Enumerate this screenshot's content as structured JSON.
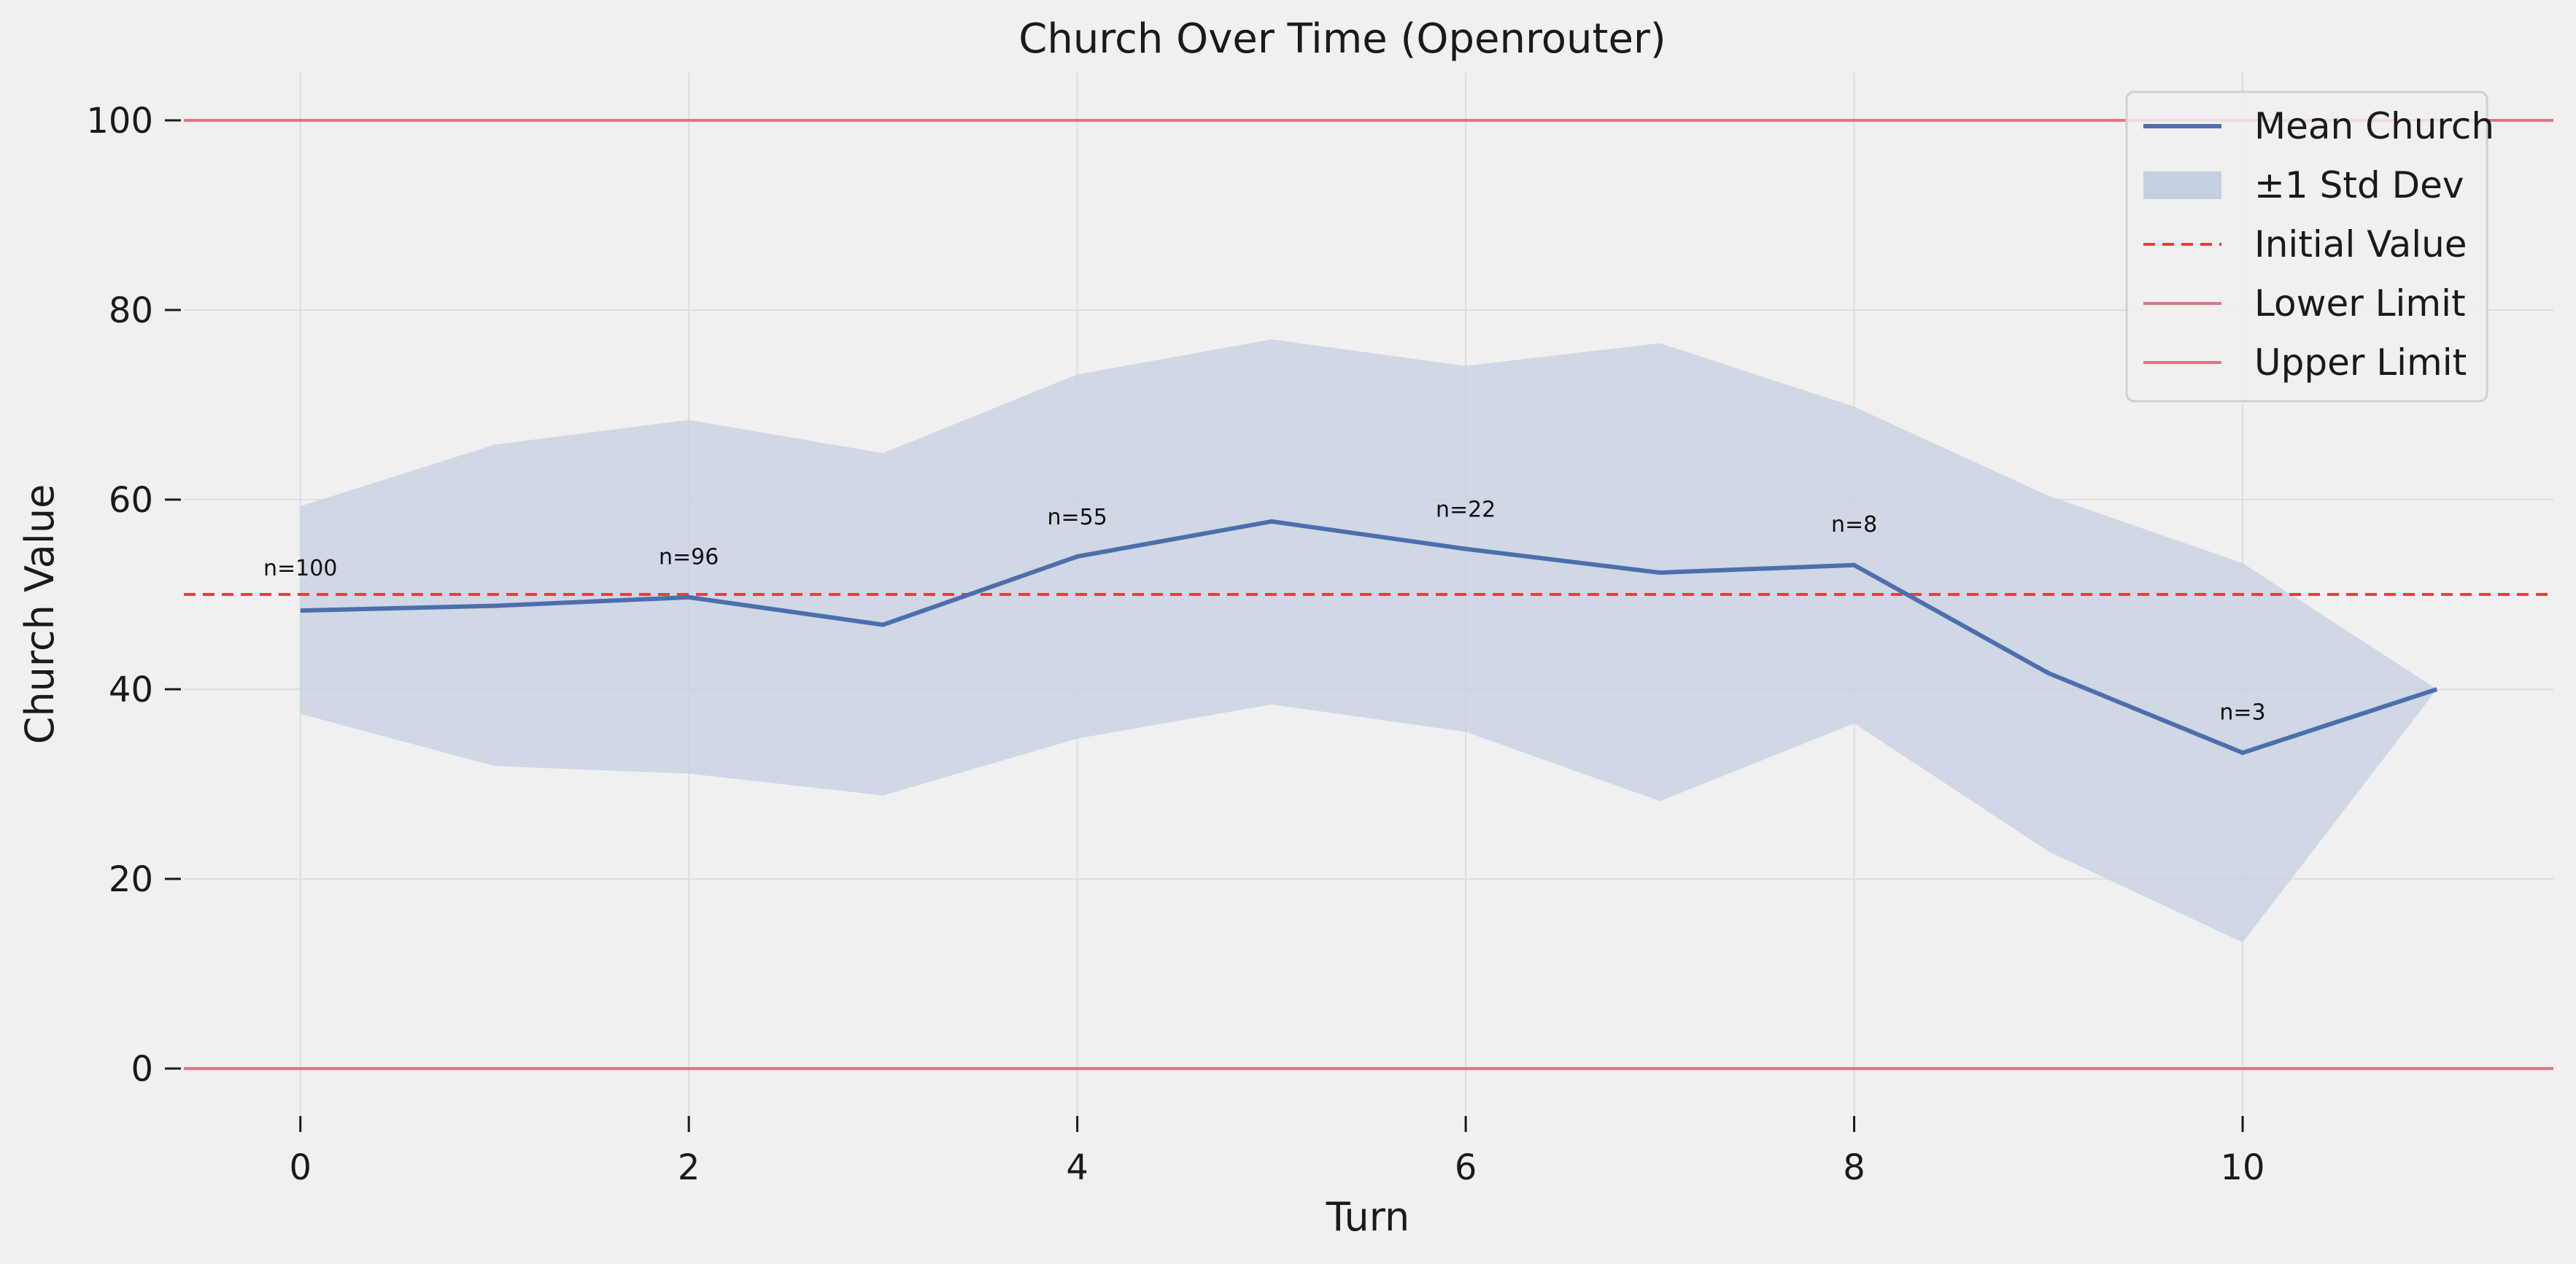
{
  "chart_data": {
    "type": "line",
    "title": "Church Over Time (Openrouter)",
    "xlabel": "Turn",
    "ylabel": "Church Value",
    "xlim": [
      -0.6,
      11.6
    ],
    "ylim": [
      -5,
      105
    ],
    "xticks": [
      0,
      2,
      4,
      6,
      8,
      10
    ],
    "yticks": [
      0,
      20,
      40,
      60,
      80,
      100
    ],
    "grid": true,
    "legend_position": "top-right",
    "x": [
      0,
      1,
      2,
      3,
      4,
      5,
      6,
      7,
      8,
      9,
      10,
      11
    ],
    "series": [
      {
        "name": "Mean Church",
        "color": "#4c6fac",
        "values": [
          48.3,
          48.8,
          49.7,
          46.8,
          54.0,
          57.7,
          54.8,
          52.3,
          53.1,
          41.7,
          33.3,
          40.0
        ]
      }
    ],
    "band": {
      "name": "±1 Std Dev",
      "color": "#c5cfe2",
      "upper": [
        59.3,
        65.8,
        68.4,
        64.9,
        73.2,
        76.9,
        74.1,
        76.5,
        69.8,
        60.4,
        53.3,
        40.0
      ],
      "lower": [
        37.4,
        31.9,
        31.1,
        28.8,
        34.8,
        38.4,
        35.5,
        28.2,
        36.4,
        22.9,
        13.3,
        40.0
      ]
    },
    "reference_lines": [
      {
        "name": "Initial Value",
        "y": 50,
        "color": "#e0413f",
        "style": "dashed"
      },
      {
        "name": "Lower Limit",
        "y": 0,
        "color": "#e07585",
        "style": "solid"
      },
      {
        "name": "Upper Limit",
        "y": 100,
        "color": "#e07585",
        "style": "solid"
      }
    ],
    "annotations": [
      {
        "text": "n=100",
        "x": 0,
        "y": 52.0
      },
      {
        "text": "n=96",
        "x": 2,
        "y": 53.2
      },
      {
        "text": "n=55",
        "x": 4,
        "y": 57.4
      },
      {
        "text": "n=22",
        "x": 6,
        "y": 58.2
      },
      {
        "text": "n=8",
        "x": 8,
        "y": 56.6
      },
      {
        "text": "n=3",
        "x": 10,
        "y": 36.8
      }
    ]
  }
}
